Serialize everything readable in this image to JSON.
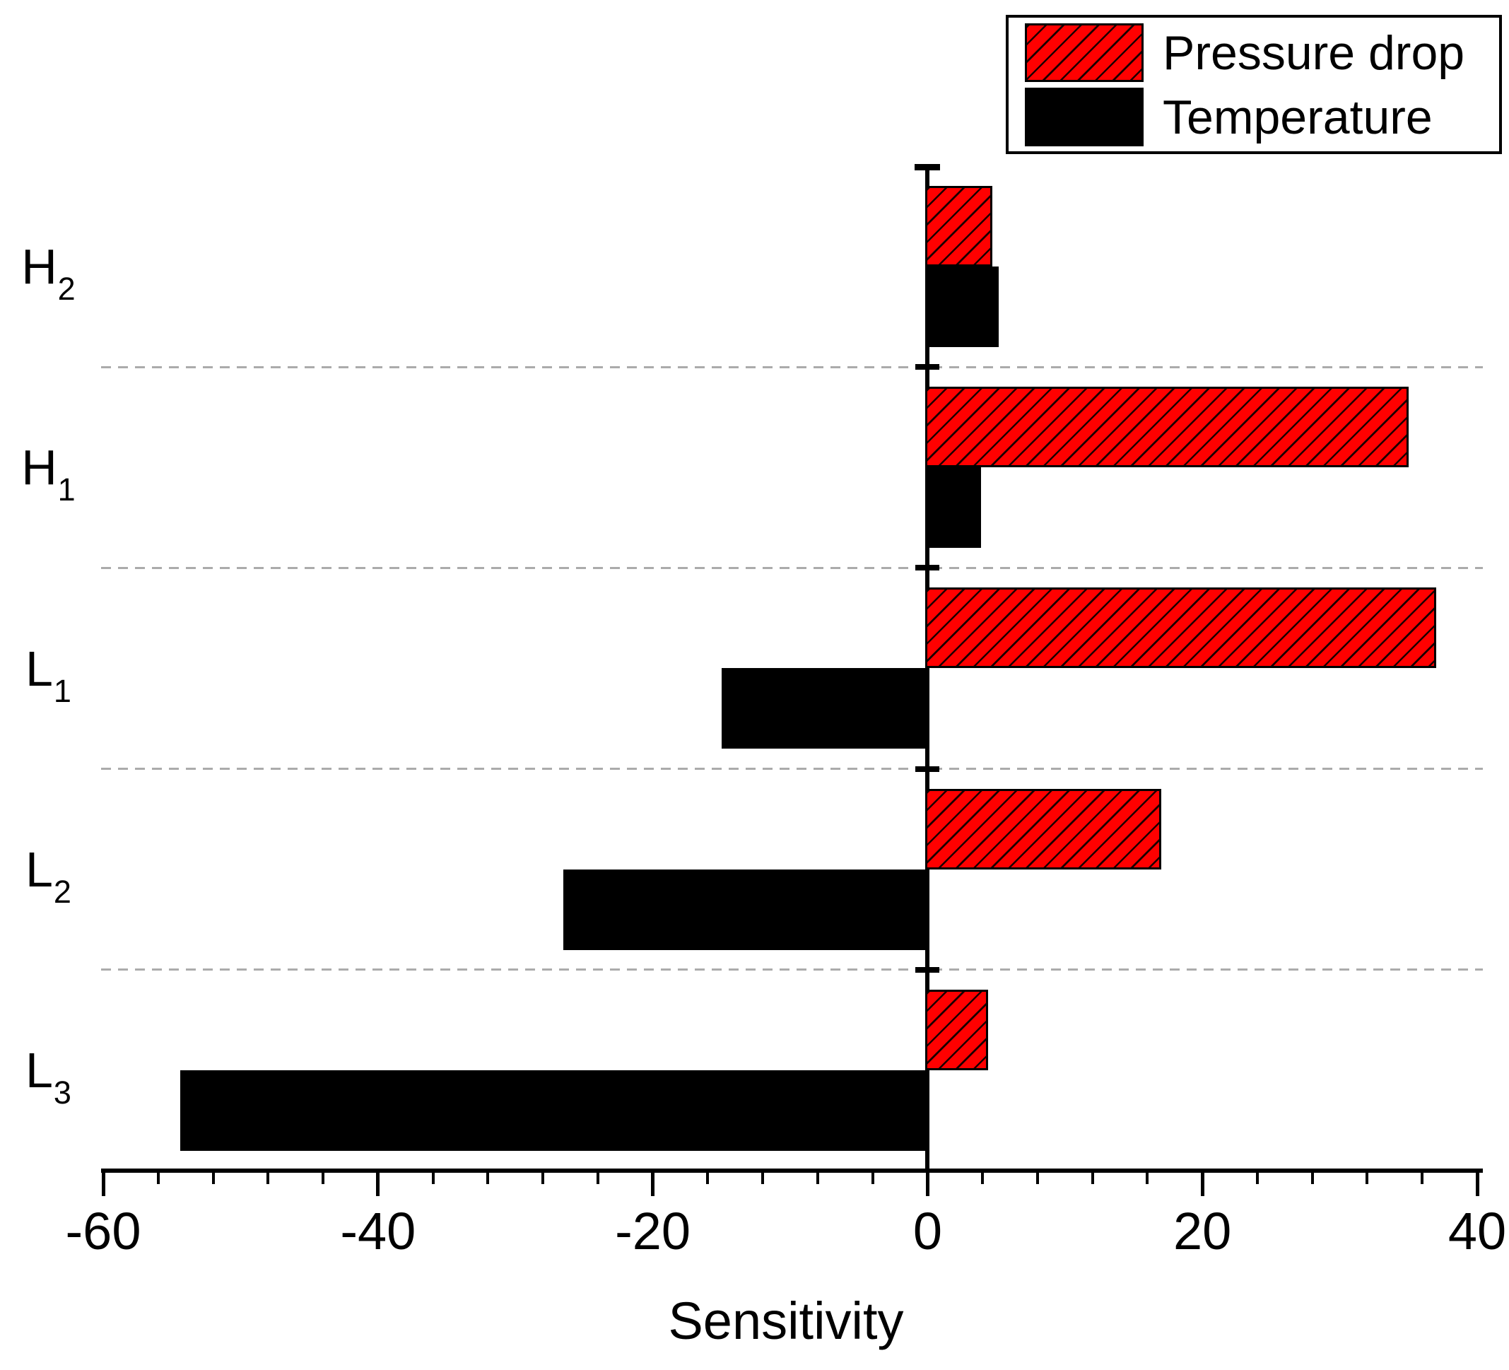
{
  "figure": {
    "background_color": "#ffffff",
    "axis_color": "#000000",
    "gridline_color": "#ababab",
    "gridline_style": "dashed"
  },
  "legend": {
    "position": "top-right",
    "border_color": "#000000",
    "entries": [
      {
        "label": "Pressure drop",
        "swatch": "red-hatched-rect",
        "color": "#ff0000"
      },
      {
        "label": "Temperature",
        "swatch": "black-solid-rect",
        "color": "#000000"
      }
    ]
  },
  "chart_data": {
    "type": "bar",
    "orientation": "horizontal",
    "title": "",
    "xlabel": "Sensitivity",
    "ylabel": "",
    "xlim": [
      -60,
      40
    ],
    "x_major_ticks": [
      -60,
      -40,
      -20,
      0,
      20,
      40
    ],
    "x_minor_tick_step": 4,
    "grid": "horizontal dashed separators between category rows",
    "legend_position": "top-right",
    "categories": [
      {
        "base": "H",
        "sub": "2"
      },
      {
        "base": "H",
        "sub": "1"
      },
      {
        "base": "L",
        "sub": "1"
      },
      {
        "base": "L",
        "sub": "2"
      },
      {
        "base": "L",
        "sub": "3"
      }
    ],
    "series": [
      {
        "name": "Pressure drop",
        "color": "#ff0000",
        "pattern": "diagonal-hatch",
        "values": [
          4.7,
          35,
          37,
          17,
          4.4
        ]
      },
      {
        "name": "Temperature",
        "color": "#000000",
        "pattern": "solid",
        "values": [
          5.2,
          3.9,
          -15,
          -26.5,
          -54.4
        ]
      }
    ]
  }
}
